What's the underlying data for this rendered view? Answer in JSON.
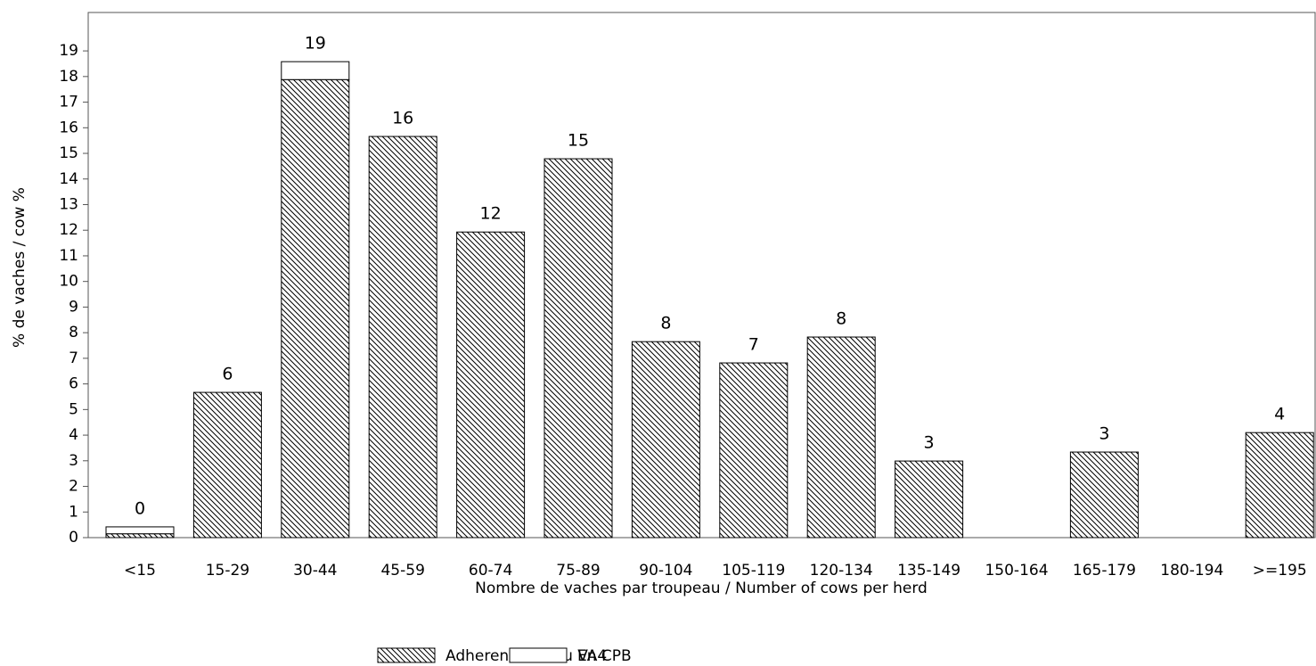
{
  "chart_data": {
    "type": "stacked_bar",
    "y_label": "% de vaches / cow %",
    "x_label": "Nombre de vaches par troupeau / Number of cows per herd",
    "categories": [
      "<15",
      "15-29",
      "30-44",
      "45-59",
      "60-74",
      "75-89",
      "90-104",
      "105-119",
      "120-134",
      "135-149",
      "150-164",
      "165-179",
      "180-194",
      ">=195"
    ],
    "series": [
      {
        "name": "Adherent VA0 ou VA4",
        "color": "#000000",
        "fill": "hatch",
        "values": [
          0.15,
          5.67,
          17.88,
          15.66,
          11.93,
          14.79,
          7.65,
          6.82,
          7.83,
          2.99,
          null,
          3.34,
          null,
          4.1
        ]
      },
      {
        "name": "En CPB",
        "color": "#000000",
        "fill": "#ffffff",
        "values": [
          0.27,
          0,
          0.7,
          0,
          0,
          0,
          0,
          0,
          0,
          0,
          null,
          0,
          null,
          0
        ]
      }
    ],
    "total_labels": [
      "0",
      "6",
      "19",
      "16",
      "12",
      "15",
      "8",
      "7",
      "8",
      "3",
      null,
      "3",
      null,
      "4"
    ],
    "ylim": [
      0,
      20.5
    ],
    "yticks": [
      0,
      1,
      2,
      3,
      4,
      5,
      6,
      7,
      8,
      9,
      10,
      11,
      12,
      13,
      14,
      15,
      16,
      17,
      18,
      19
    ]
  }
}
